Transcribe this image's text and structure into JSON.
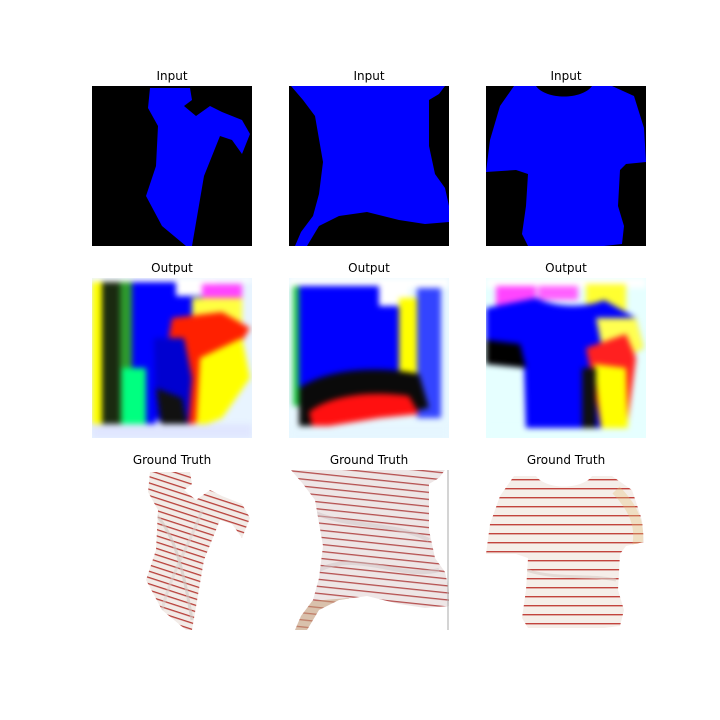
{
  "figure": {
    "columns": 3,
    "rows": [
      {
        "label": "Input"
      },
      {
        "label": "Output"
      },
      {
        "label": "Ground Truth"
      }
    ]
  },
  "colors": {
    "background": "#ffffff",
    "mask_background": "#000000",
    "mask_foreground": "#0000ff",
    "stripe": "#c0403a",
    "fabric": "#f3ebe6"
  }
}
